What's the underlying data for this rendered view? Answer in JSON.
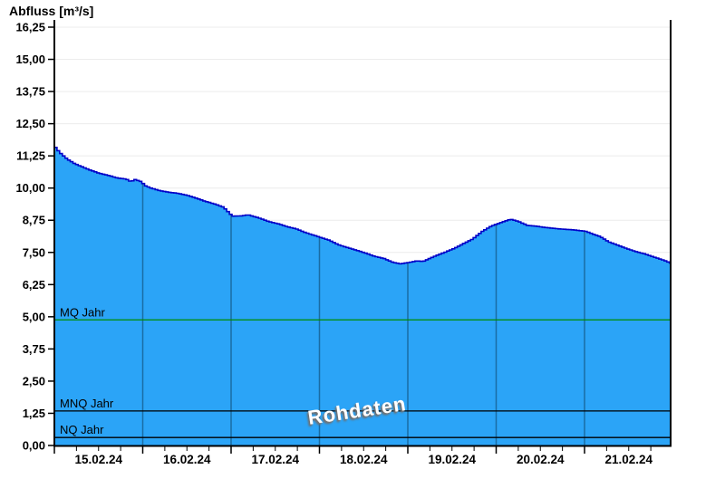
{
  "header": {
    "title": "Abfluss [m³/s]"
  },
  "watermark": {
    "text": "Rohdaten"
  },
  "chart_data": {
    "type": "area",
    "title": "Abfluss [m³/s]",
    "ylabel": "Abfluss [m³/s]",
    "series_label": "Rohdaten",
    "x_axis": {
      "kind": "time",
      "day_labels": [
        "15.02.24",
        "16.02.24",
        "17.02.24",
        "18.02.24",
        "19.02.24",
        "20.02.24",
        "21.02.24"
      ],
      "days_visible": 6.98,
      "major_tick_days": 1,
      "minor_tick_days": 0.25
    },
    "y_axis": {
      "min": 0,
      "max": 16.51,
      "ticks": [
        0,
        1.25,
        2.5,
        3.75,
        5,
        6.25,
        7.5,
        8.75,
        10,
        11.25,
        12.5,
        13.75,
        15,
        16.25
      ],
      "tick_labels": [
        "0,00",
        "1,25",
        "2,50",
        "3,75",
        "5,00",
        "6,25",
        "7,50",
        "8,75",
        "10,00",
        "11,25",
        "12,50",
        "13,75",
        "15,00",
        "16,25"
      ]
    },
    "grid": {
      "horizontal": true,
      "vertical_day_lines_over_area": [
        1,
        2,
        3,
        4,
        5,
        6
      ]
    },
    "series": [
      {
        "name": "Abfluss (Rohdaten)",
        "x_days": [
          0.0,
          0.05,
          0.13,
          0.21,
          0.29,
          0.39,
          0.49,
          0.6,
          0.7,
          0.8,
          0.85,
          0.9,
          0.97,
          1.01,
          1.08,
          1.18,
          1.28,
          1.39,
          1.49,
          1.59,
          1.69,
          1.8,
          1.9,
          2.0,
          2.1,
          2.18,
          2.31,
          2.41,
          2.52,
          2.62,
          2.72,
          2.82,
          2.93,
          3.0,
          3.1,
          3.2,
          3.31,
          3.41,
          3.51,
          3.61,
          3.72,
          3.82,
          3.9,
          4.0,
          4.09,
          4.16,
          4.23,
          4.31,
          4.41,
          4.52,
          4.62,
          4.72,
          4.83,
          4.93,
          5.0,
          5.1,
          5.15,
          5.24,
          5.34,
          5.44,
          5.54,
          5.65,
          5.75,
          5.85,
          5.95,
          6.0,
          6.06,
          6.16,
          6.26,
          6.37,
          6.47,
          6.57,
          6.67,
          6.77,
          6.88,
          6.98
        ],
        "values": [
          11.58,
          11.37,
          11.13,
          10.96,
          10.84,
          10.7,
          10.58,
          10.49,
          10.39,
          10.35,
          10.25,
          10.33,
          10.25,
          10.1,
          10.0,
          9.9,
          9.84,
          9.79,
          9.72,
          9.61,
          9.49,
          9.38,
          9.26,
          8.91,
          8.92,
          8.96,
          8.83,
          8.7,
          8.61,
          8.5,
          8.42,
          8.28,
          8.16,
          8.08,
          7.97,
          7.8,
          7.68,
          7.58,
          7.47,
          7.35,
          7.26,
          7.11,
          7.06,
          7.11,
          7.17,
          7.15,
          7.26,
          7.38,
          7.51,
          7.67,
          7.85,
          8.02,
          8.32,
          8.52,
          8.61,
          8.73,
          8.79,
          8.7,
          8.55,
          8.52,
          8.47,
          8.43,
          8.4,
          8.38,
          8.34,
          8.32,
          8.24,
          8.12,
          7.91,
          7.77,
          7.64,
          7.53,
          7.44,
          7.32,
          7.2,
          7.06
        ]
      }
    ],
    "reference_lines": [
      {
        "label": "MQ Jahr",
        "value": 4.88,
        "color": "#008C00"
      },
      {
        "label": "MNQ Jahr",
        "value": 1.34,
        "color": "#000000"
      },
      {
        "label": "NQ Jahr",
        "value": 0.31,
        "color": "#000000"
      }
    ],
    "colors": {
      "area_fill": "#2BA4F7",
      "area_line": "#0000C8",
      "day_grid": "#1A6CA4",
      "h_grid": "#ECECEC",
      "axis": "#000000",
      "background": "#FFFFFF",
      "watermark_text": "#FFFFFF"
    }
  }
}
